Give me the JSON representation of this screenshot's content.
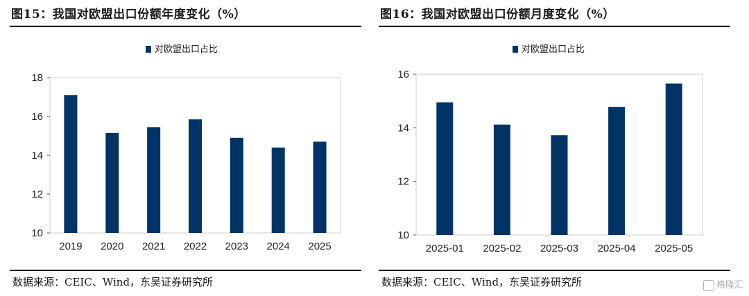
{
  "left": {
    "title": "图15：我国对欧盟出口份额年度变化（%）",
    "source": "数据来源：CEIC、Wind，东吴证券研究所",
    "chart_data": {
      "type": "bar",
      "categories": [
        "2019",
        "2020",
        "2021",
        "2022",
        "2023",
        "2024",
        "2025"
      ],
      "series": [
        {
          "name": "对欧盟出口占比",
          "values": [
            17.1,
            15.15,
            15.45,
            15.85,
            14.9,
            14.4,
            14.7
          ]
        }
      ],
      "yticks": [
        "10",
        "12",
        "14",
        "16",
        "18"
      ],
      "ylim": [
        10,
        18
      ],
      "legend_position": "top-center",
      "bar_color": "#003466"
    }
  },
  "right": {
    "title": "图16：我国对欧盟出口份额月度变化（%）",
    "source": "数据来源：CEIC、Wind，东吴证券研究所",
    "chart_data": {
      "type": "bar",
      "categories": [
        "2025-01",
        "2025-02",
        "2025-03",
        "2025-04",
        "2025-05"
      ],
      "series": [
        {
          "name": "对欧盟出口占比",
          "values": [
            14.95,
            14.12,
            13.72,
            14.78,
            15.65
          ]
        }
      ],
      "yticks": [
        "10",
        "12",
        "14",
        "16"
      ],
      "ylim": [
        10,
        16
      ],
      "legend_position": "top-center",
      "bar_color": "#003466"
    }
  },
  "watermark": "格隆汇"
}
